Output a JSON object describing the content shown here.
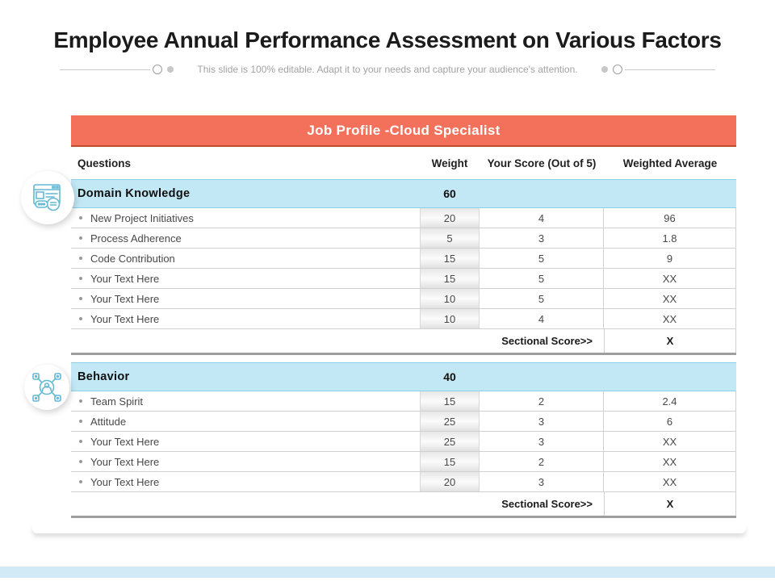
{
  "header": {
    "title": "Employee Annual Performance Assessment on Various Factors",
    "subtitle": "This slide is 100% editable. Adapt it to your needs and capture your audience's attention."
  },
  "table": {
    "title": "Job Profile -Cloud Specialist",
    "columns": [
      "Questions",
      "Weight",
      "Your Score (Out of 5)",
      "Weighted Average"
    ],
    "sections": [
      {
        "name": "Domain Knowledge",
        "weight": "60",
        "rows": [
          {
            "question": "New Project Initiatives",
            "weight": "20",
            "score": "4",
            "weighted_average": "96"
          },
          {
            "question": "Process Adherence",
            "weight": "5",
            "score": "3",
            "weighted_average": "1.8"
          },
          {
            "question": "Code Contribution",
            "weight": "15",
            "score": "5",
            "weighted_average": "9"
          },
          {
            "question": "Your Text Here",
            "weight": "15",
            "score": "5",
            "weighted_average": "XX"
          },
          {
            "question": "Your Text Here",
            "weight": "10",
            "score": "5",
            "weighted_average": "XX"
          },
          {
            "question": "Your Text Here",
            "weight": "10",
            "score": "4",
            "weighted_average": "XX"
          }
        ],
        "sectional_score_label": "Sectional Score>>",
        "sectional_score_value": "X"
      },
      {
        "name": "Behavior",
        "weight": "40",
        "rows": [
          {
            "question": "Team Spirit",
            "weight": "15",
            "score": "2",
            "weighted_average": "2.4"
          },
          {
            "question": "Attitude",
            "weight": "25",
            "score": "3",
            "weighted_average": "6"
          },
          {
            "question": "Your Text Here",
            "weight": "25",
            "score": "3",
            "weighted_average": "XX"
          },
          {
            "question": "Your Text Here",
            "weight": "15",
            "score": "2",
            "weighted_average": "XX"
          },
          {
            "question": "Your Text Here",
            "weight": "20",
            "score": "3",
            "weighted_average": "XX"
          }
        ],
        "sectional_score_label": "Sectional Score>>",
        "sectional_score_value": "X"
      }
    ]
  },
  "icons": {
    "left_top": "web-page-settings-icon",
    "left_bottom": "employee-network-icon"
  },
  "colors": {
    "table_header": "#f3705b",
    "table_header_border": "#c0492f",
    "section_row": "#c3e8f5",
    "section_row_border": "#8ad0e7",
    "icon_blue": "#63b9d6",
    "bottom_bar": "#d2eaf5",
    "thick_divider": "#9e9e9e"
  }
}
